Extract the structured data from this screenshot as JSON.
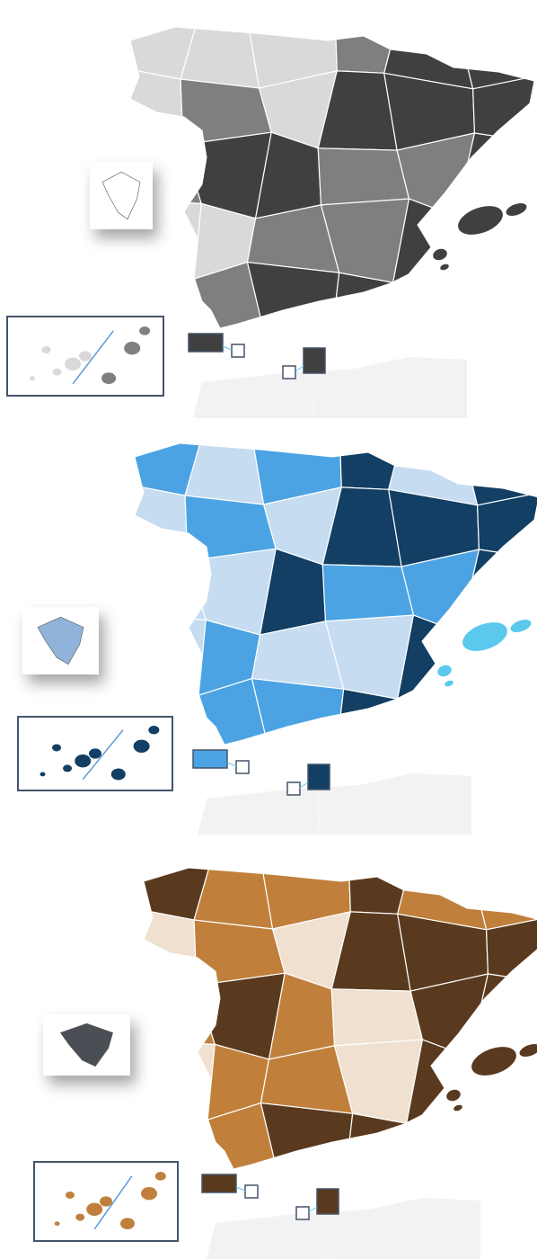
{
  "maps": [
    {
      "fills": [
        "#d9d9d9",
        "#d9d9d9",
        "#d9d9d9",
        "#7f7f7f",
        "#404040",
        "#404040",
        "#d9d9d9",
        "#7f7f7f",
        "#d9d9d9",
        "#404040",
        "#404040",
        "#404040",
        "#7f7f7f",
        "#404040",
        "#404040",
        "#7f7f7f",
        "#7f7f7f",
        "#404040",
        "#d9d9d9",
        "#d9d9d9",
        "#7f7f7f",
        "#7f7f7f",
        "#404040",
        "#404040",
        "#404040",
        "#7f7f7f",
        "#404040",
        "#404040",
        "#404040",
        "#404040"
      ],
      "islands": "#404040",
      "canaries": [
        "#d9d9d9",
        "#7f7f7f"
      ],
      "inset": "#ffffff"
    },
    {
      "fills": [
        "#4ba3e3",
        "#c6dcf0",
        "#4ba3e3",
        "#123f63",
        "#c6dcf0",
        "#123f63",
        "#c6dcf0",
        "#4ba3e3",
        "#c6dcf0",
        "#123f63",
        "#123f63",
        "#123f63",
        "#c6dcf0",
        "#c6dcf0",
        "#123f63",
        "#4ba3e3",
        "#4ba3e3",
        "#123f63",
        "#c6dcf0",
        "#4ba3e3",
        "#c6dcf0",
        "#c6dcf0",
        "#123f63",
        "#123f63",
        "#4ba3e3",
        "#4ba3e3",
        "#4ba3e3",
        "#123f63",
        "#123f63",
        "#123f63"
      ],
      "islands": "#5bc8ee",
      "canaries": [
        "#123f63",
        "#123f63"
      ],
      "inset": "#8fb3d9"
    },
    {
      "fills": [
        "#5a3a1e",
        "#c0803c",
        "#c0803c",
        "#5a3a1e",
        "#c0803c",
        "#c0803c",
        "#f0e0d0",
        "#c0803c",
        "#f0e0d0",
        "#5a3a1e",
        "#5a3a1e",
        "#5a3a1e",
        "#c0803c",
        "#5a3a1e",
        "#c0803c",
        "#f0e0d0",
        "#5a3a1e",
        "#5a3a1e",
        "#f0e0d0",
        "#c0803c",
        "#c0803c",
        "#f0e0d0",
        "#5a3a1e",
        "#5a3a1e",
        "#5a3a1e",
        "#c0803c",
        "#5a3a1e",
        "#5a3a1e",
        "#5a3a1e",
        "#5a3a1e"
      ],
      "islands": "#5a3a1e",
      "canaries": [
        "#c0803c",
        "#c0803c"
      ],
      "inset": "#4a4f55"
    }
  ]
}
